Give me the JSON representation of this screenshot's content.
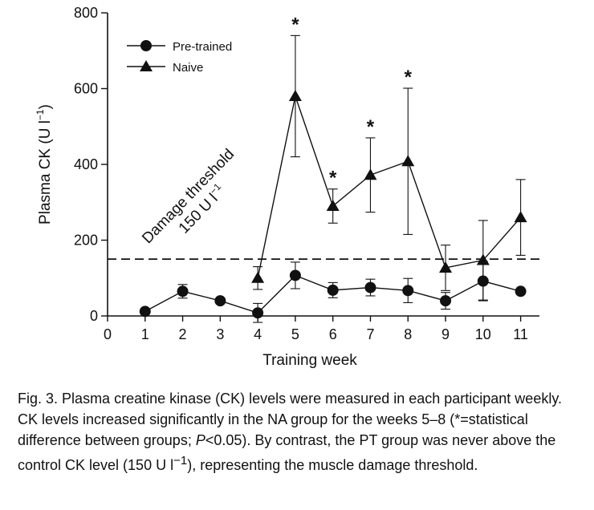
{
  "chart_data": {
    "type": "line",
    "xlabel": "Training week",
    "ylabel": "Plasma CK (U l",
    "ylabel_sup": "−1",
    "ylabel_end": ")",
    "xlim": [
      0,
      11.5
    ],
    "ylim": [
      0,
      800
    ],
    "x_ticks": [
      0,
      1,
      2,
      3,
      4,
      5,
      6,
      7,
      8,
      9,
      10,
      11
    ],
    "y_ticks": [
      0,
      200,
      400,
      600,
      800
    ],
    "legend_position": "top-left",
    "threshold": {
      "value": 150,
      "label_line1": "Damage threshold",
      "label_line2": "150 U l",
      "label_sup": "−1"
    },
    "series": [
      {
        "name": "Pre-trained",
        "marker": "circle",
        "x": [
          1,
          2,
          3,
          4,
          5,
          6,
          7,
          8,
          9,
          10,
          11
        ],
        "y": [
          12,
          65,
          40,
          8,
          107,
          68,
          75,
          67,
          40,
          92,
          65
        ],
        "err": [
          0,
          18,
          0,
          25,
          35,
          20,
          22,
          32,
          22,
          52,
          0
        ]
      },
      {
        "name": "Naive",
        "marker": "triangle",
        "x": [
          4,
          5,
          6,
          7,
          8,
          9,
          10,
          11
        ],
        "y": [
          100,
          580,
          290,
          372,
          408,
          127,
          147,
          260
        ],
        "err": [
          30,
          160,
          45,
          98,
          193,
          60,
          105,
          100
        ]
      }
    ],
    "significance": {
      "symbol": "*",
      "weeks": [
        5,
        6,
        7,
        8
      ]
    }
  },
  "caption": {
    "label": "Fig. 3.",
    "part1": "Plasma creatine kinase (CK) levels were measured in each participant weekly. CK levels increased significantly in the NA group for the weeks 5–8 (*=statistical difference between groups; ",
    "p": "P",
    "part2": "<0.05). By contrast, the PT group was never above the control CK level (150 U l",
    "sup": "−1",
    "part3": "), representing the muscle damage threshold."
  }
}
